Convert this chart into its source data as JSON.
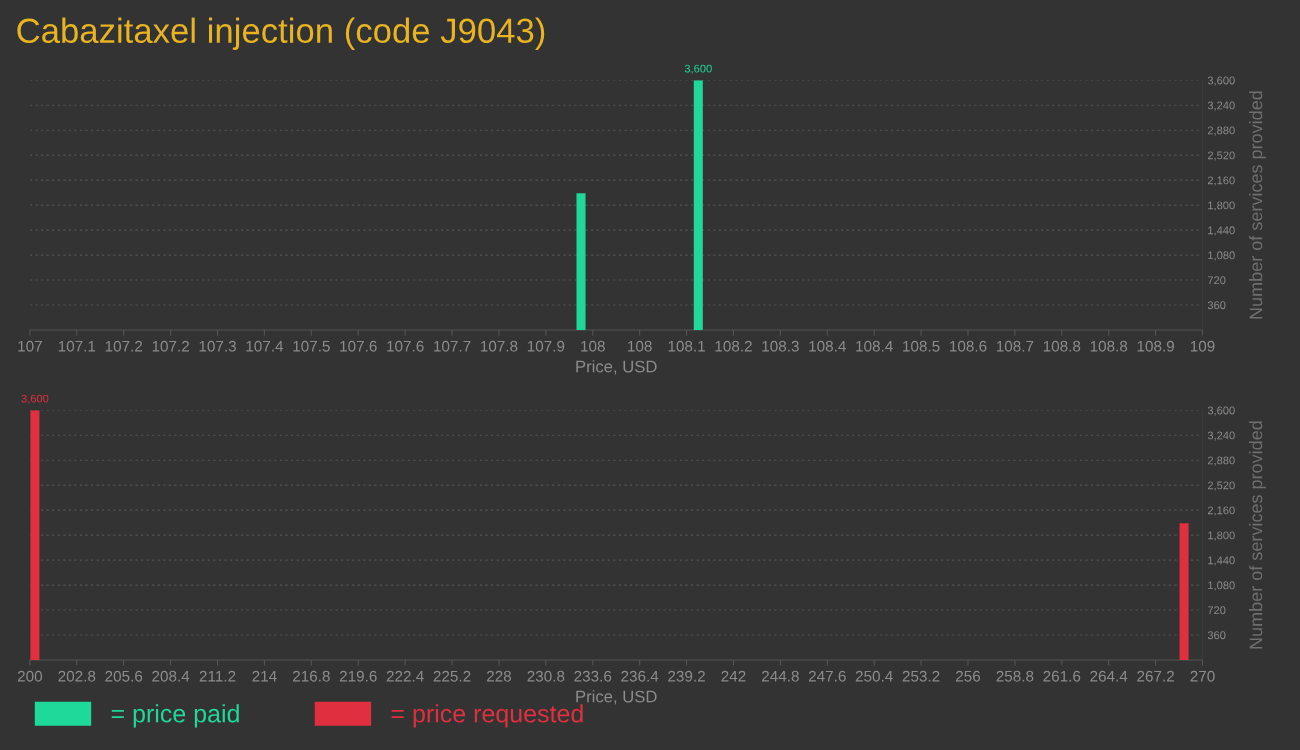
{
  "chart_data": [
    {
      "type": "bar",
      "title": "Cabazitaxel injection (code J9043)",
      "xlabel": "Price, USD",
      "ylabel": "Number of services provided",
      "x": [
        107.94,
        108.14
      ],
      "series": [
        {
          "name": "= price paid",
          "color": "#1fd99a",
          "values": [
            1970,
            3600
          ],
          "value_labels": [
            null,
            "3,600"
          ]
        }
      ],
      "xlim": [
        107,
        109
      ],
      "xticks": [
        107,
        {
          "value": 107.08,
          "label": "107.1"
        },
        {
          "value": 107.16,
          "label": "107.2"
        },
        {
          "value": 107.24,
          "label": "107.2"
        },
        {
          "value": 107.32,
          "label": "107.3"
        },
        107.4,
        {
          "value": 107.48,
          "label": "107.5"
        },
        {
          "value": 107.56,
          "label": "107.6"
        },
        {
          "value": 107.64,
          "label": "107.6"
        },
        {
          "value": 107.72,
          "label": "107.7"
        },
        107.8,
        {
          "value": 107.88,
          "label": "107.9"
        },
        {
          "value": 107.96,
          "label": "108"
        },
        {
          "value": 108.04,
          "label": "108"
        },
        {
          "value": 108.12,
          "label": "108.1"
        },
        108.2,
        {
          "value": 108.28,
          "label": "108.3"
        },
        {
          "value": 108.36,
          "label": "108.4"
        },
        {
          "value": 108.44,
          "label": "108.4"
        },
        {
          "value": 108.52,
          "label": "108.5"
        },
        108.6,
        {
          "value": 108.68,
          "label": "108.7"
        },
        {
          "value": 108.76,
          "label": "108.8"
        },
        {
          "value": 108.84,
          "label": "108.8"
        },
        {
          "value": 108.92,
          "label": "108.9"
        },
        109
      ],
      "ylim": [
        0,
        3600
      ],
      "yticks": [
        360,
        720,
        {
          "value": 1080,
          "label": "1,080"
        },
        {
          "value": 1440,
          "label": "1,440"
        },
        {
          "value": 1800,
          "label": "1,800"
        },
        {
          "value": 2160,
          "label": "2,160"
        },
        {
          "value": 2520,
          "label": "2,520"
        },
        {
          "value": 2880,
          "label": "2,880"
        },
        {
          "value": 3240,
          "label": "3,240"
        },
        {
          "value": 3600,
          "label": "3,600"
        }
      ],
      "grid": "y",
      "legend": "bottom"
    },
    {
      "type": "bar",
      "xlabel": "Price, USD",
      "ylabel": "Number of services provided",
      "x": [
        200.3,
        268.9
      ],
      "series": [
        {
          "name": "= price requested",
          "color": "#e0303f",
          "values": [
            3600,
            1970
          ],
          "value_labels": [
            "3,600",
            null
          ]
        }
      ],
      "xlim": [
        200,
        270
      ],
      "xticks": [
        200,
        202.8,
        205.6,
        208.4,
        211.2,
        214,
        216.8,
        219.6,
        222.4,
        225.2,
        228,
        230.8,
        233.6,
        236.4,
        239.2,
        242,
        244.8,
        247.6,
        250.4,
        253.2,
        256,
        258.8,
        261.6,
        264.4,
        267.2,
        270
      ],
      "ylim": [
        0,
        3600
      ],
      "yticks": [
        360,
        720,
        {
          "value": 1080,
          "label": "1,080"
        },
        {
          "value": 1440,
          "label": "1,440"
        },
        {
          "value": 1800,
          "label": "1,800"
        },
        {
          "value": 2160,
          "label": "2,160"
        },
        {
          "value": 2520,
          "label": "2,520"
        },
        {
          "value": 2880,
          "label": "2,880"
        },
        {
          "value": 3240,
          "label": "3,240"
        },
        {
          "value": 3600,
          "label": "3,600"
        }
      ],
      "grid": "y",
      "legend": "bottom"
    }
  ]
}
